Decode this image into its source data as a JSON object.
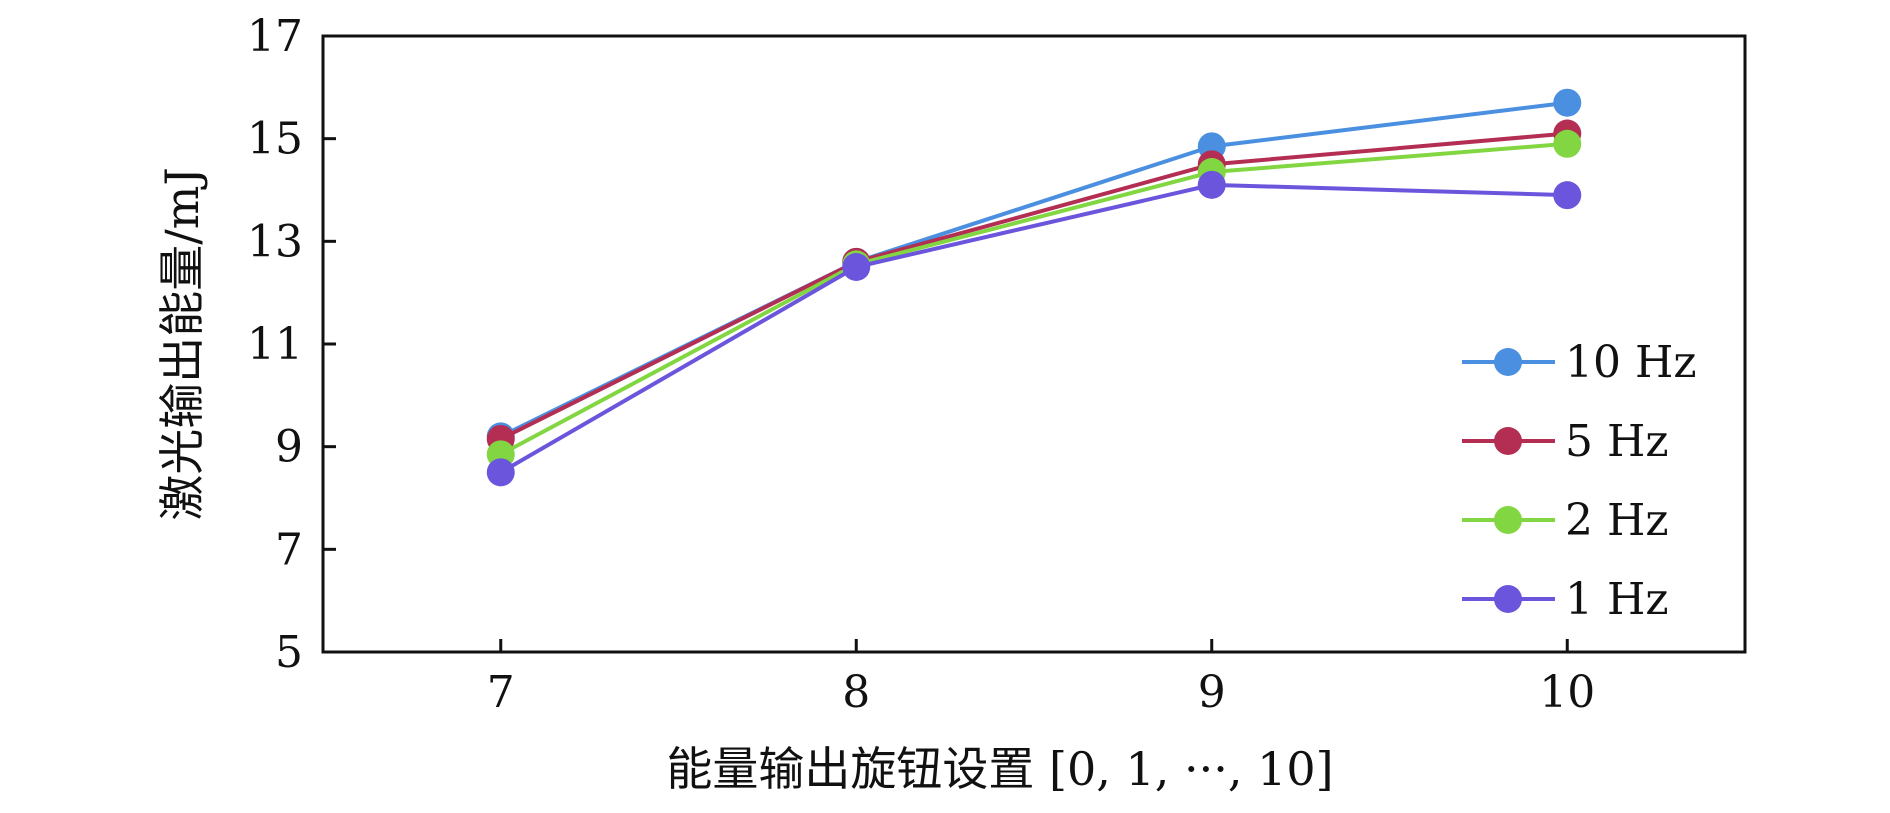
{
  "chart_data": {
    "type": "line",
    "xlabel": "能量输出旋钮设置 [0, 1, ···, 10]",
    "ylabel": "激光输出能量/mJ",
    "x": [
      7,
      8,
      9,
      10
    ],
    "xticks": [
      "7",
      "8",
      "9",
      "10"
    ],
    "yticks": [
      "5",
      "7",
      "9",
      "11",
      "13",
      "15",
      "17"
    ],
    "xlim": [
      6.5,
      10.5
    ],
    "ylim": [
      5,
      17
    ],
    "grid": false,
    "legend_position": "bottom-right",
    "series": [
      {
        "name": "10 Hz",
        "color": "#4a8fe0",
        "values": [
          9.2,
          12.6,
          14.85,
          15.7
        ]
      },
      {
        "name": "5 Hz",
        "color": "#b32e52",
        "values": [
          9.15,
          12.6,
          14.5,
          15.1
        ]
      },
      {
        "name": "2 Hz",
        "color": "#82d642",
        "values": [
          8.85,
          12.55,
          14.35,
          14.9
        ]
      },
      {
        "name": "1 Hz",
        "color": "#6b55dd",
        "values": [
          8.5,
          12.5,
          14.1,
          13.9
        ]
      }
    ]
  }
}
